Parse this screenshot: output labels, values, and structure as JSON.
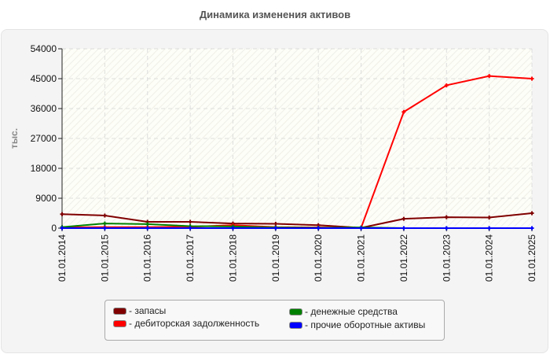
{
  "title": "Динамика изменения активов",
  "chart_data": {
    "type": "line",
    "title": "Динамика изменения активов",
    "xlabel": "",
    "ylabel": "тыс.",
    "ylim": [
      0,
      54000
    ],
    "yticks": [
      0,
      9000,
      18000,
      27000,
      36000,
      45000,
      54000
    ],
    "grid": true,
    "legend_position": "bottom",
    "x": [
      "01.01.2014",
      "01.01.2015",
      "01.01.2016",
      "01.01.2017",
      "01.01.2018",
      "01.01.2019",
      "01.01.2020",
      "01.01.2021",
      "01.01.2022",
      "01.01.2023",
      "01.01.2024",
      "01.01.2025"
    ],
    "series": [
      {
        "name": "запасы",
        "color": "#800000",
        "values": [
          4200,
          3800,
          1900,
          1900,
          1400,
          1300,
          900,
          100,
          2800,
          3300,
          3200,
          4500
        ]
      },
      {
        "name": "дебиторская задолженность",
        "color": "#ff0000",
        "values": [
          200,
          300,
          300,
          400,
          900,
          300,
          200,
          100,
          35000,
          43000,
          45800,
          45000
        ]
      },
      {
        "name": "денежные средства",
        "color": "#008000",
        "values": [
          300,
          1400,
          1200,
          600,
          500,
          200,
          100,
          200,
          0,
          0,
          0,
          0
        ]
      },
      {
        "name": "прочие оборотные активы",
        "color": "#0000ff",
        "values": [
          0,
          0,
          0,
          0,
          0,
          0,
          0,
          0,
          0,
          0,
          0,
          0
        ]
      }
    ]
  },
  "legend": {
    "items": [
      {
        "label": "- запасы",
        "color": "#800000"
      },
      {
        "label": "- дебиторская задолженность",
        "color": "#ff0000"
      },
      {
        "label": "- денежные средства",
        "color": "#008000"
      },
      {
        "label": "- прочие оборотные активы",
        "color": "#0000ff"
      }
    ]
  }
}
